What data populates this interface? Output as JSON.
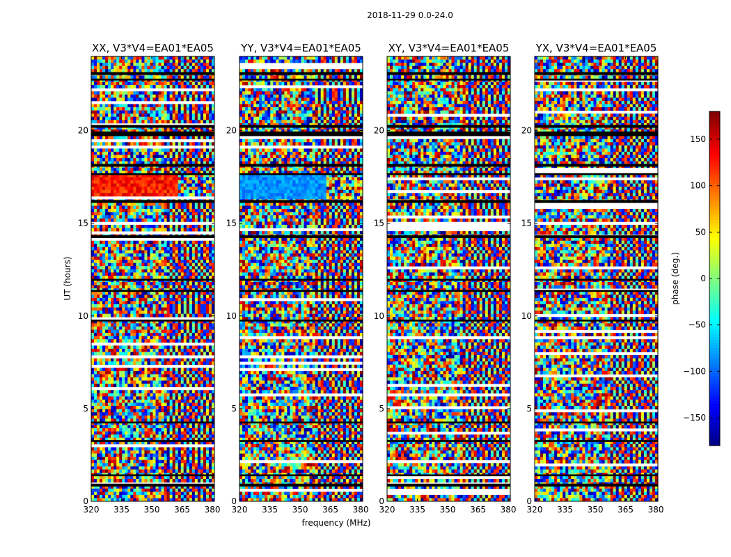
{
  "suptitle": "2018-11-29 0.0-24.0",
  "chart_data": {
    "type": "heatmap",
    "title": "2018-11-29 0.0-24.0",
    "xlabel": "frequency (MHz)",
    "ylabel": "UT (hours)",
    "xlim": [
      320,
      381
    ],
    "ylim": [
      0,
      24
    ],
    "xticks": [
      320,
      335,
      350,
      365,
      380
    ],
    "yticks": [
      0,
      5,
      10,
      15,
      20
    ],
    "panels": [
      {
        "title": "XX, V3*V4=EA01*EA05",
        "pol": "XX"
      },
      {
        "title": "YY, V3*V4=EA01*EA05",
        "pol": "YY"
      },
      {
        "title": "XY, V3*V4=EA01*EA05",
        "pol": "XY"
      },
      {
        "title": "YX, V3*V4=EA01*EA05",
        "pol": "YX"
      }
    ],
    "colorbar": {
      "label": "phase (deg.)",
      "range": [
        -180,
        180
      ],
      "ticks": [
        150,
        100,
        50,
        0,
        -50,
        -100,
        -150
      ],
      "tick_labels": [
        "150",
        "100",
        "50",
        "0",
        "−50",
        "−100",
        "−150"
      ],
      "colormap": "jet"
    },
    "flagged_ut_ranges": [
      [
        23.0,
        23.15
      ],
      [
        22.7,
        22.8
      ],
      [
        20.15,
        20.3
      ],
      [
        19.7,
        19.95
      ],
      [
        18.05,
        18.2
      ],
      [
        17.6,
        17.7
      ],
      [
        16.1,
        16.25
      ],
      [
        14.2,
        14.35
      ],
      [
        11.9,
        12.0
      ],
      [
        11.3,
        11.4
      ],
      [
        9.7,
        9.8
      ],
      [
        4.2,
        4.3
      ],
      [
        3.2,
        3.3
      ],
      [
        1.35,
        1.45
      ],
      [
        0.8,
        0.95
      ]
    ]
  }
}
